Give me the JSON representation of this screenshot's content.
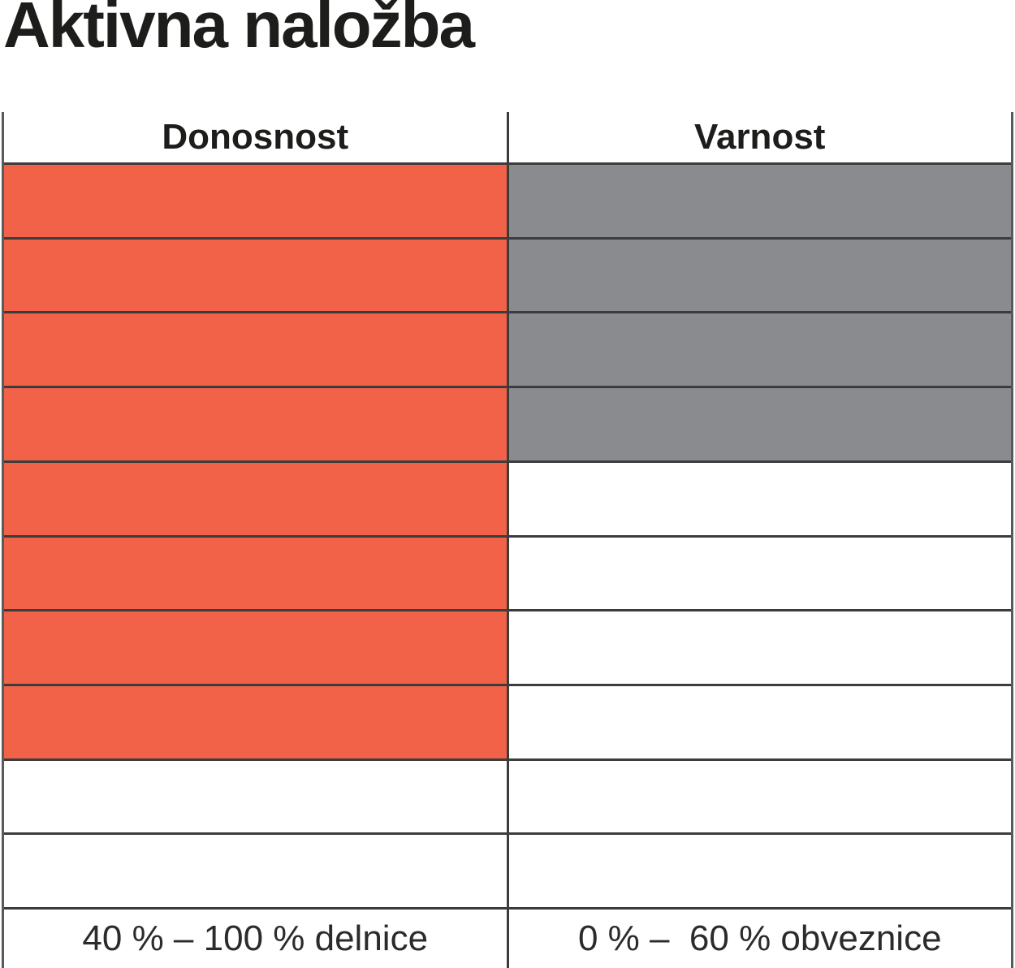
{
  "title": "Aktivna naložba",
  "table": {
    "headers": [
      "Donosnost",
      "Varnost"
    ],
    "footers": [
      "40 % – 100 % delnice",
      "0 % –  60 % obveznice"
    ]
  },
  "colors": {
    "donosnost_fill": "#f26249",
    "varnost_fill": "#8a8b8e",
    "grid_line": "#3c3c3c",
    "outer_border": "#58595b"
  },
  "chart_data": {
    "type": "table",
    "title": "Aktivna naložba",
    "rows_total": 10,
    "series": [
      {
        "name": "Donosnost",
        "filled_rows": 8,
        "fill_color": "#f26249",
        "range_label": "40 % – 100 % delnice"
      },
      {
        "name": "Varnost",
        "filled_rows": 4,
        "fill_color": "#8a8b8e",
        "range_label": "0 % –  60 % obveznice"
      }
    ]
  }
}
